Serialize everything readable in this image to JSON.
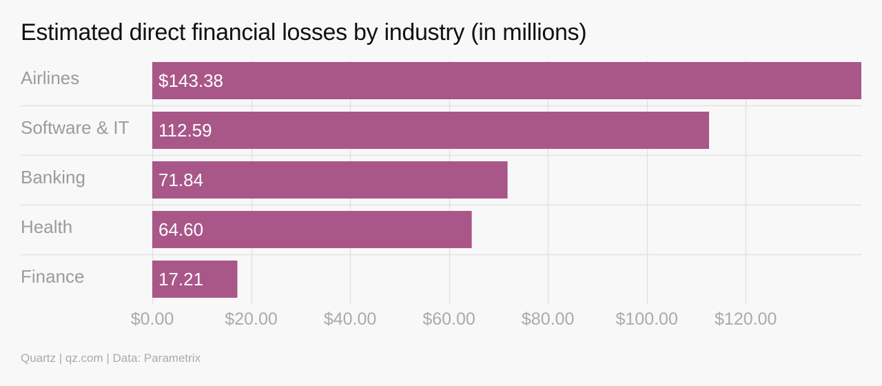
{
  "chart_data": {
    "type": "bar",
    "orientation": "horizontal",
    "title": "Estimated direct financial losses by industry (in millions)",
    "categories": [
      "Airlines",
      "Software & IT",
      "Banking",
      "Health",
      "Finance"
    ],
    "values": [
      143.38,
      112.59,
      71.84,
      64.6,
      17.21
    ],
    "data_labels": [
      "$143.38",
      "112.59",
      "71.84",
      "64.60",
      "17.21"
    ],
    "x_ticks": [
      0,
      20,
      40,
      60,
      80,
      100,
      120
    ],
    "x_tick_labels": [
      "$0.00",
      "$20.00",
      "$40.00",
      "$60.00",
      "$80.00",
      "$100.00",
      "$120.00"
    ],
    "xlim": [
      0,
      143.38
    ],
    "xlabel": "",
    "ylabel": "",
    "grid": true,
    "legend": "none"
  },
  "colors": {
    "bar": "#a85788",
    "bar_label": "#ffffff",
    "category_label": "#9b9b9b",
    "tick_label": "#aaaaaa",
    "grid": "#e2e2e2",
    "background": "#f8f8f8"
  },
  "source": "Quartz | qz.com | Data: Parametrix"
}
